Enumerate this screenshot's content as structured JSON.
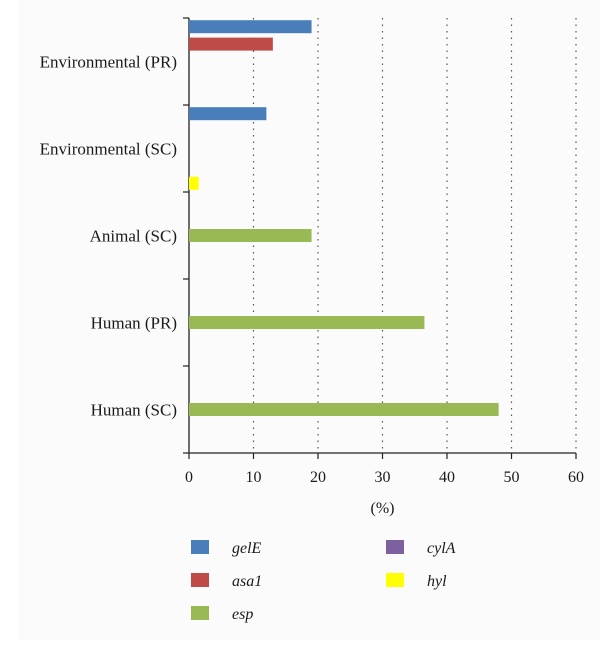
{
  "chart_data": {
    "type": "bar",
    "orientation": "horizontal",
    "categories": [
      "Environmental (PR)",
      "Environmental (SC)",
      "Animal (SC)",
      "Human (PR)",
      "Human (SC)"
    ],
    "series": [
      {
        "name": "gelE",
        "color": "#4a7ebb",
        "values": [
          19,
          12,
          0,
          0,
          0
        ]
      },
      {
        "name": "asa1",
        "color": "#be4b48",
        "values": [
          13,
          0,
          0,
          0,
          0
        ]
      },
      {
        "name": "esp",
        "color": "#98b954",
        "values": [
          0,
          0,
          19,
          36.5,
          48
        ]
      },
      {
        "name": "cylA",
        "color": "#7d60a0",
        "values": [
          0,
          0,
          0,
          0,
          0
        ]
      },
      {
        "name": "hyl",
        "color": "#ffff00",
        "values": [
          0,
          1.5,
          0,
          0,
          0
        ]
      }
    ],
    "xlabel": "(%)",
    "xlim": [
      0,
      60
    ],
    "xticks": [
      "0",
      "10",
      "20",
      "30",
      "40",
      "50",
      "60"
    ],
    "grid": "vertical dotted",
    "legend_position": "bottom"
  }
}
